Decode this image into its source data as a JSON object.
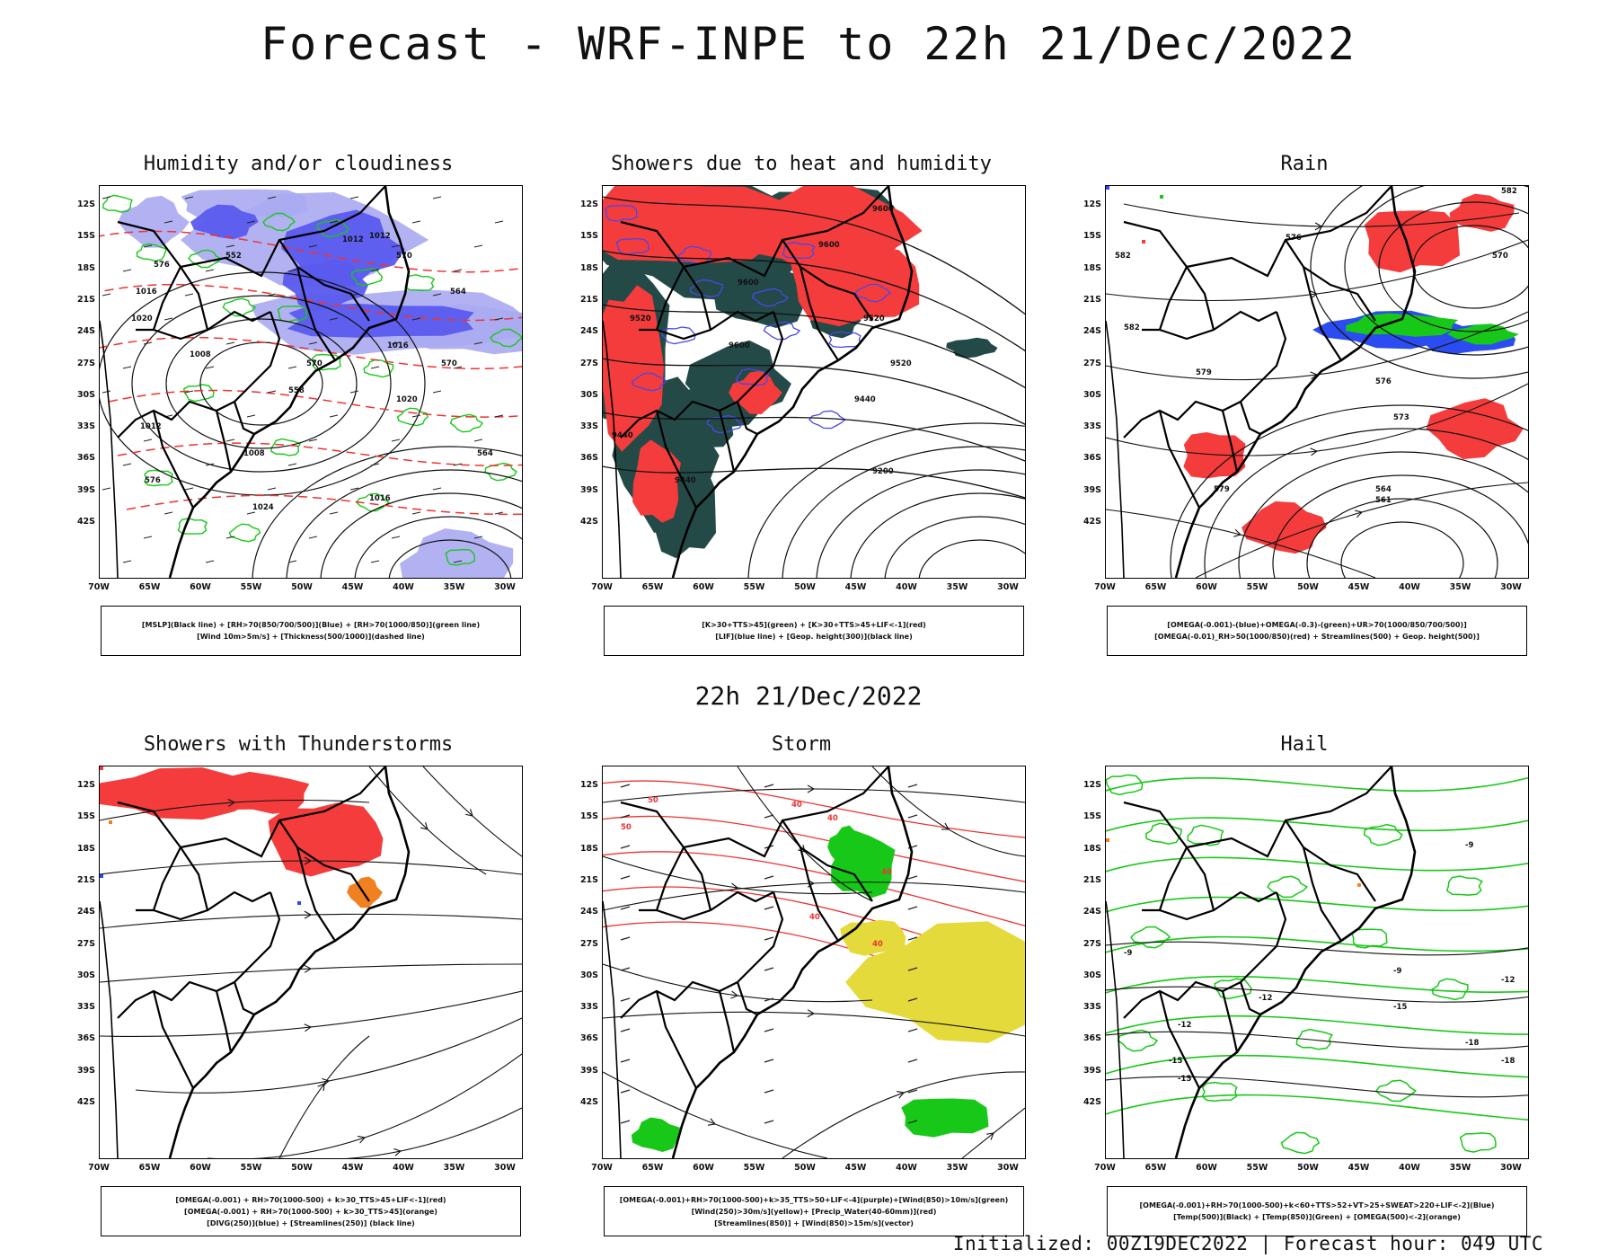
{
  "title": "Forecast - WRF-INPE to 22h 21/Dec/2022",
  "mid_title": "22h 21/Dec/2022",
  "footer": "Initialized: 00Z19DEC2022 | Forecast hour: 049 UTC",
  "axes": {
    "lat_labels": [
      "12S",
      "15S",
      "18S",
      "21S",
      "24S",
      "27S",
      "30S",
      "33S",
      "36S",
      "39S",
      "42S"
    ],
    "lon_labels": [
      "70W",
      "65W",
      "60W",
      "55W",
      "50W",
      "45W",
      "40W",
      "35W",
      "30W"
    ]
  },
  "colors": {
    "blue_shade": "#5a5aee",
    "lavender_shade": "#aaaaf2",
    "green_line": "#18c818",
    "red_line": "#ee3333",
    "red_fill": "#f43c3c",
    "teal_fill": "#244a48",
    "yellow_fill": "#e4da3c",
    "orange": "#f08020",
    "blue_dots": "#2a4cf0"
  },
  "panels": [
    {
      "id": "humidity",
      "title": "Humidity and/or cloudiness",
      "legend": [
        "[MSLP](Black line) + [RH>70(850/700/500)](Blue) + [RH>70(1000/850)](green line)",
        "[Wind 10m>5m/s] + [Thickness(500/1000)](dashed line)"
      ],
      "contour_labels": [
        "1012",
        "1012",
        "1016",
        "1020",
        "1008",
        "1016",
        "1020",
        "1012",
        "1008",
        "1024",
        "1016",
        "570",
        "576",
        "564",
        "558",
        "552",
        "570",
        "576",
        "564",
        "570"
      ]
    },
    {
      "id": "showers",
      "title": "Showers due to heat and humidity",
      "legend": [
        "[K>30+TTS>45](green) + [K>30+TTS>45+LIF<-1](red)",
        "[LIF](blue line) + [Geop. height(300)](black line)"
      ],
      "contour_labels": [
        "9600",
        "9600",
        "9520",
        "9600",
        "9520",
        "9600",
        "9520",
        "9440",
        "9440",
        "9440",
        "9200"
      ]
    },
    {
      "id": "rain",
      "title": "Rain",
      "legend": [
        "[OMEGA(-0.001)-(blue)+OMEGA(-0.3)-(green)+UR>70(1000/850/700/500)]",
        "[OMEGA(-0.01)_RH>50(1000/850)(red) + Streamlines(500) + Geop. height(500)]"
      ],
      "contour_labels": [
        "582",
        "582",
        "576",
        "582",
        "579",
        "576",
        "573",
        "564",
        "561",
        "579",
        "570"
      ]
    },
    {
      "id": "thunder",
      "title": "Showers with Thunderstorms",
      "legend": [
        "[OMEGA(-0.001) + RH>70(1000-500) + k>30_TTS>45+LIF<-1](red)",
        "[OMEGA(-0.001) + RH>70(1000-500) + k>30_TTS>45](orange)",
        "[DIVG(250)](blue) + [Streamlines(250)] (black line)"
      ],
      "contour_labels": []
    },
    {
      "id": "storm",
      "title": "Storm",
      "legend": [
        "[OMEGA(-0.001)+RH>70(1000-500)+k>35_TTS>50+LIF<-4](purple)+[Wind(850)>10m/s](green)",
        "[Wind(250)>30m/s](yellow)+ [Precip_Water(40-60mm)](red)",
        "[Streamlines(850)] + [Wind(850)>15m/s](vector)"
      ],
      "contour_labels": [
        "50",
        "50",
        "40",
        "40",
        "40",
        "40",
        "40"
      ]
    },
    {
      "id": "hail",
      "title": "Hail",
      "legend": [
        "[OMEGA(-0.001)+RH>70(1000-500)+k<60+TTS>52+VT>25+SWEAT>220+LIF<-2](Blue)",
        "[Temp(500)](Black) + [Temp(850)](Green) + [OMEGA(500)<-2](orange)"
      ],
      "contour_labels": [
        "-9",
        "-9",
        "-12",
        "-12",
        "-12",
        "-15",
        "-15",
        "-18",
        "-15",
        "-18",
        "-9"
      ]
    }
  ]
}
